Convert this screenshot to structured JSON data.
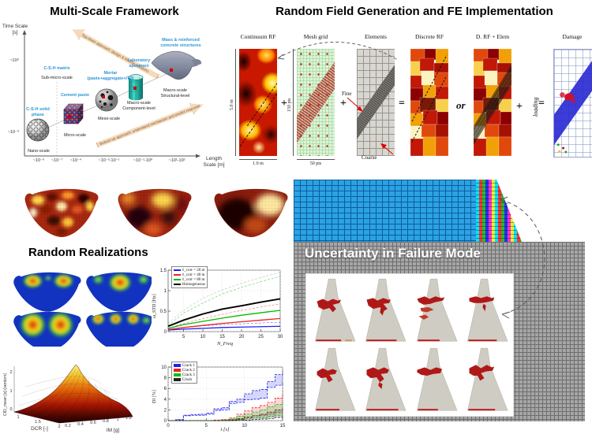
{
  "framework": {
    "title": "Multi-Scale Framework",
    "y_axis": {
      "label": "Time Scale [s]",
      "ticks": [
        "~10⁸",
        "~10⁻⁹"
      ]
    },
    "x_axis": {
      "label": "Length Scale [m]",
      "ticks": [
        "~10⁻⁹",
        "~10⁻⁷",
        "~10⁻⁴",
        "~10⁻³-10⁻¹",
        "~10⁻¹-10⁰",
        "~10¹-10²"
      ]
    },
    "top_arrow": "Top-down approach: design & inverse solutions",
    "bottom_arrow": "Bottom-up approach: understand mechanism and predict response",
    "items": [
      {
        "blue_label": "C-S-H solid phase",
        "scale_label": "Nano-scale"
      },
      {
        "blue_label": "C-S-H matrix",
        "scale_label": "Sub-micro-scale"
      },
      {
        "blue_label": "Cement paste",
        "scale_label": "Micro-scale"
      },
      {
        "blue_label": "Mortar (paste+aggregate+ITZ)",
        "scale_label": "Meso-scale"
      },
      {
        "blue_label": "Laboratory specimen",
        "scale_label": "Macro-scale Component-level"
      },
      {
        "blue_label": "Mass & reinforced concrete structures",
        "scale_label": "Macro-scale Structural-level"
      }
    ]
  },
  "rf_pipeline": {
    "title": "Random Field Generation and FE Implementation",
    "panels": [
      {
        "label": "Continuum RF",
        "dim_v": "5.0 m",
        "dim_h": "1.0 m"
      },
      {
        "label": "Mesh grid",
        "dim_v": "150 pts",
        "dim_h": "50 pts"
      },
      {
        "label": "Elements",
        "annot_fine": "Fine",
        "annot_coarse": "Coarse"
      },
      {
        "label": "Discrete RF"
      },
      {
        "label": "D. RF + Elem"
      },
      {
        "label": "Damage"
      }
    ],
    "operators": {
      "plus": "+",
      "equals": "=",
      "or": "or",
      "loading": "loading"
    }
  },
  "realizations": {
    "title": "Random Realizations"
  },
  "uncertainty": {
    "title": "Uncertainty in Failure Mode",
    "dam_count": 8
  },
  "chart_data": [
    {
      "id": "frequency_std",
      "type": "line",
      "title": "",
      "xlabel": "N_Freq",
      "ylabel": "ω_STD [Hz]",
      "xlim": [
        1,
        30
      ],
      "ylim": [
        0,
        1.5
      ],
      "x_ticks": [
        5,
        10,
        15,
        20,
        25,
        30
      ],
      "y_ticks": [
        0,
        0.5,
        1,
        1.5
      ],
      "legend_position": "top-left",
      "x": [
        1,
        5,
        10,
        15,
        20,
        25,
        30
      ],
      "series": [
        {
          "name": "ℓ_corr = 20 m",
          "color": "#2222ee",
          "values": [
            0.04,
            0.06,
            0.08,
            0.1,
            0.11,
            0.12,
            0.13
          ]
        },
        {
          "name": "ℓ_corr = 40 m",
          "color": "#ee2222",
          "values": [
            0.05,
            0.1,
            0.15,
            0.2,
            0.24,
            0.28,
            0.32
          ]
        },
        {
          "name": "ℓ_corr = 80 m",
          "color": "#00bb00",
          "values": [
            0.08,
            0.17,
            0.25,
            0.33,
            0.4,
            0.46,
            0.52
          ]
        },
        {
          "name": "Homogeneous",
          "color": "#000000",
          "values": [
            0.13,
            0.28,
            0.43,
            0.55,
            0.63,
            0.72,
            0.8
          ]
        }
      ],
      "bounds": [
        {
          "color": "#999999",
          "values": [
            0.2,
            0.52,
            0.82,
            1.02,
            1.18,
            1.32,
            1.45
          ]
        },
        {
          "color": "#00bb00",
          "values": [
            0.15,
            0.45,
            0.7,
            0.92,
            1.08,
            1.22,
            1.35
          ]
        },
        {
          "color": "#ee2222",
          "values": [
            0.08,
            0.2,
            0.32,
            0.42,
            0.52,
            0.6,
            0.68
          ]
        },
        {
          "color": "#2222ee",
          "values": [
            0.06,
            0.1,
            0.14,
            0.17,
            0.19,
            0.21,
            0.23
          ]
        }
      ]
    },
    {
      "id": "damage_index",
      "type": "area",
      "title": "",
      "xlabel": "t [s]",
      "ylabel": "DI [%]",
      "xlim": [
        0,
        15
      ],
      "ylim": [
        0,
        10
      ],
      "x_ticks": [
        0,
        5,
        10,
        15
      ],
      "y_ticks": [
        0,
        2,
        4,
        6,
        8,
        10
      ],
      "legend_position": "top-left",
      "x": [
        0,
        1,
        2,
        3,
        4,
        5,
        6,
        7,
        8,
        9,
        10,
        11,
        12,
        13,
        14,
        15
      ],
      "series": [
        {
          "name": "Crack 1",
          "color": "#2222ee",
          "upper": [
            0,
            0.2,
            1.0,
            1.1,
            1.2,
            1.4,
            2.2,
            2.4,
            3.6,
            4.0,
            5.0,
            5.6,
            5.8,
            7.3,
            8.6,
            9.3
          ],
          "lower": [
            0,
            0.1,
            0.9,
            1.0,
            1.0,
            1.2,
            1.9,
            2.0,
            3.2,
            3.4,
            3.9,
            4.0,
            4.2,
            6.2,
            6.6,
            7.0
          ]
        },
        {
          "name": "Crack 2",
          "color": "#ee2222",
          "upper": [
            0,
            0,
            0,
            0,
            0,
            0,
            0.1,
            0.2,
            0.5,
            1.2,
            1.8,
            2.4,
            2.8,
            3.4,
            4.2,
            5.0
          ],
          "lower": [
            0,
            0,
            0,
            0,
            0,
            0,
            0,
            0.1,
            0.2,
            0.4,
            0.7,
            0.9,
            1.0,
            1.2,
            1.5,
            1.8
          ]
        },
        {
          "name": "Crack 3",
          "color": "#11bb11",
          "upper": [
            0,
            0,
            0,
            0,
            0,
            0,
            0,
            0.1,
            0.3,
            0.8,
            1.2,
            1.6,
            2.0,
            2.6,
            3.0,
            3.6
          ],
          "lower": [
            0,
            0,
            0,
            0,
            0,
            0,
            0,
            0,
            0.1,
            0.2,
            0.4,
            0.5,
            0.6,
            0.8,
            1.0,
            1.2
          ]
        },
        {
          "name": "Crush",
          "color": "#222222",
          "upper": [
            0,
            0,
            0,
            0,
            0,
            0,
            0,
            0,
            0.1,
            0.3,
            0.6,
            0.9,
            1.2,
            1.6,
            2.0,
            2.3
          ],
          "lower": [
            0,
            0,
            0,
            0,
            0,
            0,
            0,
            0,
            0,
            0.1,
            0.1,
            0.2,
            0.3,
            0.4,
            0.6,
            0.8
          ]
        }
      ]
    },
    {
      "id": "cid_surface",
      "type": "surface",
      "xlabel": "DCR [-]",
      "ylabel": "IM [g]",
      "zlabel": "CID_mean [s] (random)",
      "x_ticks": [
        1,
        1.5,
        2
      ],
      "y_ticks": [
        0.2,
        0.4,
        0.6,
        0.8,
        1,
        1.2
      ],
      "z_ticks": [
        0,
        1,
        2
      ],
      "peak_z": 2.3,
      "description": "Mean cumulative inelastic duration rising toward DCR = 2 and IM = 1.2 g"
    }
  ]
}
